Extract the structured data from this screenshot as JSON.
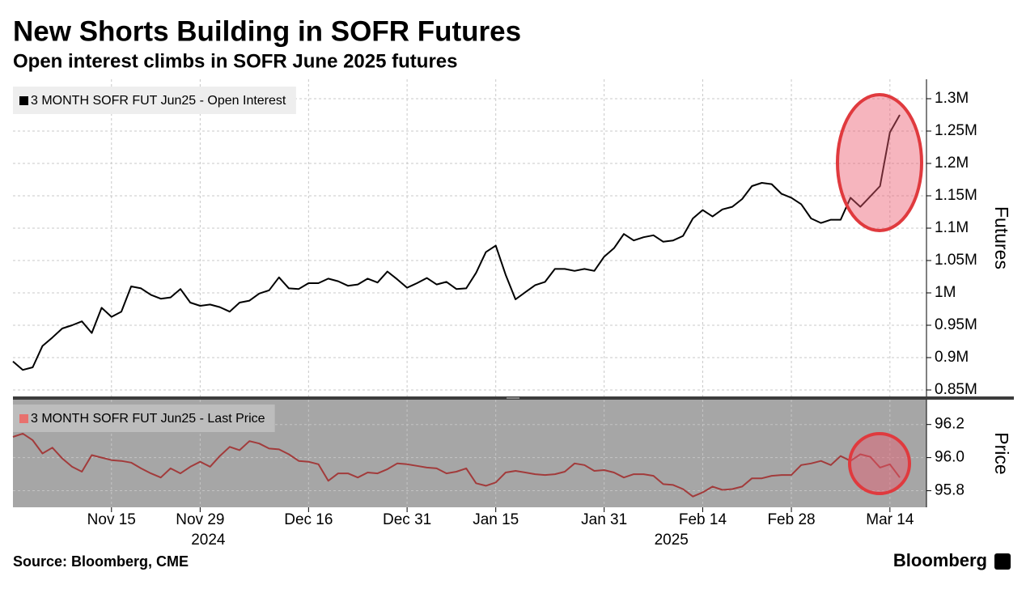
{
  "chart_data": [
    {
      "type": "line",
      "title": "New Shorts Building in SOFR Futures",
      "subtitle": "Open interest climbs in SOFR June 2025 futures",
      "ylabel": "Futures",
      "grid": true,
      "legend": "top-left",
      "series": [
        {
          "name": "3 MONTH SOFR FUT Jun25 - Open Interest",
          "color": "#000000",
          "values": [
            894000,
            881000,
            885000,
            918000,
            931000,
            945000,
            950000,
            956000,
            938000,
            977000,
            963000,
            971000,
            1010000,
            1007000,
            997000,
            991000,
            993000,
            1006000,
            985000,
            980000,
            982000,
            978000,
            971000,
            985000,
            988000,
            999000,
            1004000,
            1024000,
            1007000,
            1006000,
            1015000,
            1015000,
            1022000,
            1018000,
            1011000,
            1013000,
            1022000,
            1016000,
            1033000,
            1021000,
            1008000,
            1015000,
            1023000,
            1013000,
            1017000,
            1006000,
            1007000,
            1031000,
            1063000,
            1073000,
            1028000,
            990000,
            1001000,
            1012000,
            1017000,
            1037000,
            1037000,
            1034000,
            1037000,
            1034000,
            1056000,
            1069000,
            1091000,
            1081000,
            1086000,
            1089000,
            1079000,
            1081000,
            1088000,
            1115000,
            1128000,
            1118000,
            1129000,
            1133000,
            1145000,
            1165000,
            1170000,
            1168000,
            1153000,
            1147000,
            1137000,
            1115000,
            1108000,
            1113000,
            1113000,
            1147000,
            1133000,
            1149000,
            1165000,
            1248000,
            1275000
          ]
        }
      ],
      "ylim": [
        840000,
        1330000
      ],
      "yticks": [
        {
          "value": 850000,
          "label": "0.85M"
        },
        {
          "value": 900000,
          "label": "0.9M"
        },
        {
          "value": 950000,
          "label": "0.95M"
        },
        {
          "value": 1000000,
          "label": "1M"
        },
        {
          "value": 1050000,
          "label": "1.05M"
        },
        {
          "value": 1100000,
          "label": "1.1M"
        },
        {
          "value": 1150000,
          "label": "1.15M"
        },
        {
          "value": 1200000,
          "label": "1.2M"
        },
        {
          "value": 1250000,
          "label": "1.25M"
        },
        {
          "value": 1300000,
          "label": "1.3M"
        }
      ]
    },
    {
      "type": "line",
      "ylabel": "Price",
      "grid": true,
      "legend": "top-left",
      "source": "Source: Bloomberg, CME",
      "brand": "Bloomberg",
      "x": [
        "2024-11-01",
        "2024-11-04",
        "2024-11-05",
        "2024-11-06",
        "2024-11-07",
        "2024-11-08",
        "2024-11-11",
        "2024-11-12",
        "2024-11-13",
        "2024-11-14",
        "2024-11-15",
        "2024-11-18",
        "2024-11-19",
        "2024-11-20",
        "2024-11-21",
        "2024-11-22",
        "2024-11-25",
        "2024-11-26",
        "2024-11-27",
        "2024-11-29",
        "2024-12-02",
        "2024-12-03",
        "2024-12-04",
        "2024-12-05",
        "2024-12-06",
        "2024-12-09",
        "2024-12-10",
        "2024-12-11",
        "2024-12-12",
        "2024-12-13",
        "2024-12-16",
        "2024-12-17",
        "2024-12-18",
        "2024-12-19",
        "2024-12-20",
        "2024-12-23",
        "2024-12-24",
        "2024-12-26",
        "2024-12-27",
        "2024-12-30",
        "2024-12-31",
        "2025-01-02",
        "2025-01-03",
        "2025-01-06",
        "2025-01-07",
        "2025-01-08",
        "2025-01-10",
        "2025-01-13",
        "2025-01-14",
        "2025-01-15",
        "2025-01-16",
        "2025-01-17",
        "2025-01-21",
        "2025-01-22",
        "2025-01-23",
        "2025-01-24",
        "2025-01-27",
        "2025-01-28",
        "2025-01-29",
        "2025-01-30",
        "2025-01-31",
        "2025-02-03",
        "2025-02-04",
        "2025-02-05",
        "2025-02-06",
        "2025-02-07",
        "2025-02-10",
        "2025-02-11",
        "2025-02-12",
        "2025-02-13",
        "2025-02-14",
        "2025-02-18",
        "2025-02-19",
        "2025-02-20",
        "2025-02-21",
        "2025-02-24",
        "2025-02-25",
        "2025-02-26",
        "2025-02-27",
        "2025-02-28",
        "2025-03-03",
        "2025-03-04",
        "2025-03-05",
        "2025-03-06",
        "2025-03-07",
        "2025-03-10",
        "2025-03-11",
        "2025-03-12",
        "2025-03-13",
        "2025-03-14",
        "2025-03-17"
      ],
      "series": [
        {
          "name": "3 MONTH SOFR FUT Jun25 - Last Price",
          "color": "#a23b3b",
          "legend_color": "#e8716e",
          "values": [
            96.125,
            96.145,
            96.105,
            96.025,
            96.06,
            95.995,
            95.945,
            95.915,
            96.015,
            96.0,
            95.985,
            95.98,
            95.97,
            95.935,
            95.905,
            95.88,
            95.935,
            95.905,
            95.945,
            95.975,
            95.945,
            96.01,
            96.065,
            96.045,
            96.1,
            96.085,
            96.055,
            96.05,
            96.02,
            95.98,
            95.975,
            95.96,
            95.86,
            95.905,
            95.905,
            95.88,
            95.91,
            95.905,
            95.93,
            95.965,
            95.96,
            95.95,
            95.94,
            95.935,
            95.905,
            95.915,
            95.935,
            95.845,
            95.83,
            95.85,
            95.91,
            95.92,
            95.91,
            95.9,
            95.895,
            95.9,
            95.915,
            95.965,
            95.955,
            95.92,
            95.925,
            95.91,
            95.88,
            95.9,
            95.9,
            95.89,
            95.84,
            95.835,
            95.81,
            95.765,
            95.79,
            95.825,
            95.805,
            95.81,
            95.825,
            95.875,
            95.875,
            95.89,
            95.895,
            95.895,
            95.955,
            95.965,
            95.98,
            95.955,
            96.01,
            95.98,
            96.02,
            96.005,
            95.94,
            95.96,
            95.88
          ]
        }
      ],
      "ylim": [
        95.7,
        96.35
      ],
      "yticks": [
        95.8,
        {
          "value": 96.0,
          "label": "96.0"
        },
        96.2
      ],
      "xticks": [
        {
          "value": "2024-11-15",
          "label": "Nov 15"
        },
        {
          "value": "2024-11-29",
          "label": "Nov 29"
        },
        {
          "value": "2024-12-16",
          "label": "Dec 16"
        },
        {
          "value": "2024-12-31",
          "label": "Dec 31"
        },
        {
          "value": "2025-01-15",
          "label": "Jan 15"
        },
        {
          "value": "2025-01-31",
          "label": "Jan 31"
        },
        {
          "value": "2025-02-14",
          "label": "Feb 14"
        },
        {
          "value": "2025-02-28",
          "label": "Feb 28"
        },
        {
          "value": "2025-03-14",
          "label": "Mar 14"
        }
      ],
      "year_labels": [
        {
          "value": "2024-11-29",
          "label": "2024"
        },
        {
          "value": "2025-02-10",
          "label": "2025"
        }
      ]
    }
  ]
}
